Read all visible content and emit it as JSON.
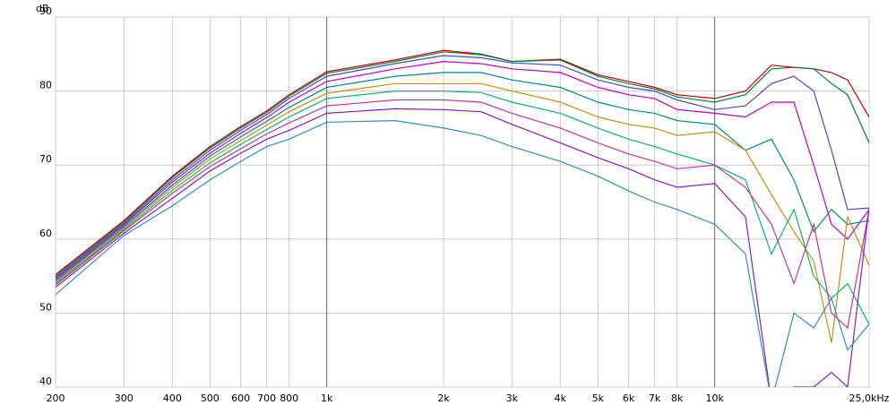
{
  "chart_data": {
    "type": "line",
    "y_label": "dB",
    "log_x": true,
    "grid": true,
    "x": [
      200,
      300,
      400,
      500,
      600,
      700,
      800,
      1000,
      1500,
      2000,
      2500,
      3000,
      4000,
      5000,
      6000,
      7000,
      8000,
      10000,
      12000,
      14000,
      16000,
      18000,
      20000,
      22000,
      25000
    ],
    "xlim": [
      200,
      25000
    ],
    "xticks": [
      200,
      300,
      400,
      500,
      600,
      700,
      800,
      {
        "value": 1000,
        "label": "1k"
      },
      {
        "value": 2000,
        "label": "2k"
      },
      {
        "value": 3000,
        "label": "3k"
      },
      {
        "value": 4000,
        "label": "4k"
      },
      {
        "value": 5000,
        "label": "5k"
      },
      {
        "value": 6000,
        "label": "6k"
      },
      {
        "value": 7000,
        "label": "7k"
      },
      {
        "value": 8000,
        "label": "8k"
      },
      {
        "value": 10000,
        "label": "10k"
      },
      {
        "value": 25000,
        "label": "25,0kHz"
      }
    ],
    "ylim": [
      40,
      90
    ],
    "yticks": [
      40,
      50,
      60,
      70,
      80,
      90
    ],
    "series": [
      {
        "color": "#c00000",
        "values": [
          55.2,
          62.5,
          68.5,
          72.5,
          75.2,
          77.3,
          79.5,
          82.6,
          84.2,
          85.5,
          85,
          84,
          84.3,
          82.2,
          81.3,
          80.5,
          79.5,
          79,
          80,
          83.5,
          83.2,
          83,
          82.5,
          81.5,
          76.5
        ]
      },
      {
        "color": "#008040",
        "values": [
          55,
          62.3,
          68.3,
          72.3,
          75,
          77.1,
          79.3,
          82.4,
          84,
          85.3,
          84.9,
          84,
          84.2,
          82,
          81,
          80.3,
          79.2,
          78.5,
          79.5,
          83,
          83.2,
          83,
          81,
          79.5,
          73
        ]
      },
      {
        "color": "#4848c8",
        "values": [
          54.8,
          62.1,
          68,
          72,
          74.7,
          76.8,
          79,
          82,
          83.7,
          84.8,
          84.5,
          83.8,
          83.5,
          81.5,
          80.5,
          80,
          78.8,
          77.5,
          78,
          81,
          82,
          80,
          72,
          64,
          64.2
        ]
      },
      {
        "color": "#c000c0",
        "values": [
          54.6,
          61.9,
          67.7,
          71.6,
          74.3,
          76.4,
          78.5,
          81.3,
          83,
          84,
          83.7,
          83,
          82.5,
          80.5,
          79.5,
          79,
          77.5,
          77,
          76.5,
          78.5,
          78.5,
          70,
          62,
          60,
          64
        ]
      },
      {
        "color": "#008888",
        "values": [
          54.4,
          61.7,
          67.3,
          71.2,
          73.8,
          75.9,
          77.8,
          80.5,
          82,
          82.5,
          82.5,
          81.5,
          80.5,
          78.5,
          77.5,
          77,
          76,
          75.5,
          72,
          73.5,
          68,
          61,
          64,
          62,
          62.5
        ]
      },
      {
        "color": "#c09010",
        "values": [
          54.2,
          61.5,
          67,
          70.8,
          73.3,
          75.4,
          77.2,
          79.7,
          81,
          81,
          81,
          80,
          78.5,
          76.5,
          75.5,
          75,
          74,
          74.5,
          72,
          66,
          61,
          57,
          46,
          63,
          56.5
        ]
      },
      {
        "color": "#10b070",
        "values": [
          54,
          61.3,
          66.6,
          70.3,
          72.8,
          74.8,
          76.5,
          79,
          80,
          80,
          79.8,
          78.5,
          77,
          75,
          73.5,
          72.5,
          71.5,
          70,
          68,
          58,
          64,
          55,
          52,
          54,
          48.5
        ]
      },
      {
        "color": "#c03890",
        "values": [
          53.8,
          61.1,
          66.2,
          69.8,
          72.2,
          74.2,
          75.7,
          78,
          78.8,
          78.8,
          78.5,
          77,
          75,
          73,
          71.5,
          70.5,
          69.5,
          70,
          67,
          62,
          54,
          62,
          50,
          48,
          64
        ]
      },
      {
        "color": "#8020c0",
        "values": [
          53.5,
          60.8,
          65.5,
          69.2,
          71.6,
          73.5,
          74.7,
          77,
          77.6,
          77.5,
          77.2,
          75.5,
          73,
          71,
          69.5,
          68,
          67,
          67.5,
          63,
          38,
          40,
          40,
          42,
          40,
          64.3
        ]
      },
      {
        "color": "#3090b0",
        "values": [
          52.5,
          60.5,
          64.5,
          68,
          70.5,
          72.5,
          73.5,
          75.8,
          76,
          75,
          74,
          72.5,
          70.5,
          68.5,
          66.5,
          65,
          64,
          62,
          58,
          38,
          50,
          48,
          52,
          45,
          48.5
        ]
      }
    ]
  }
}
